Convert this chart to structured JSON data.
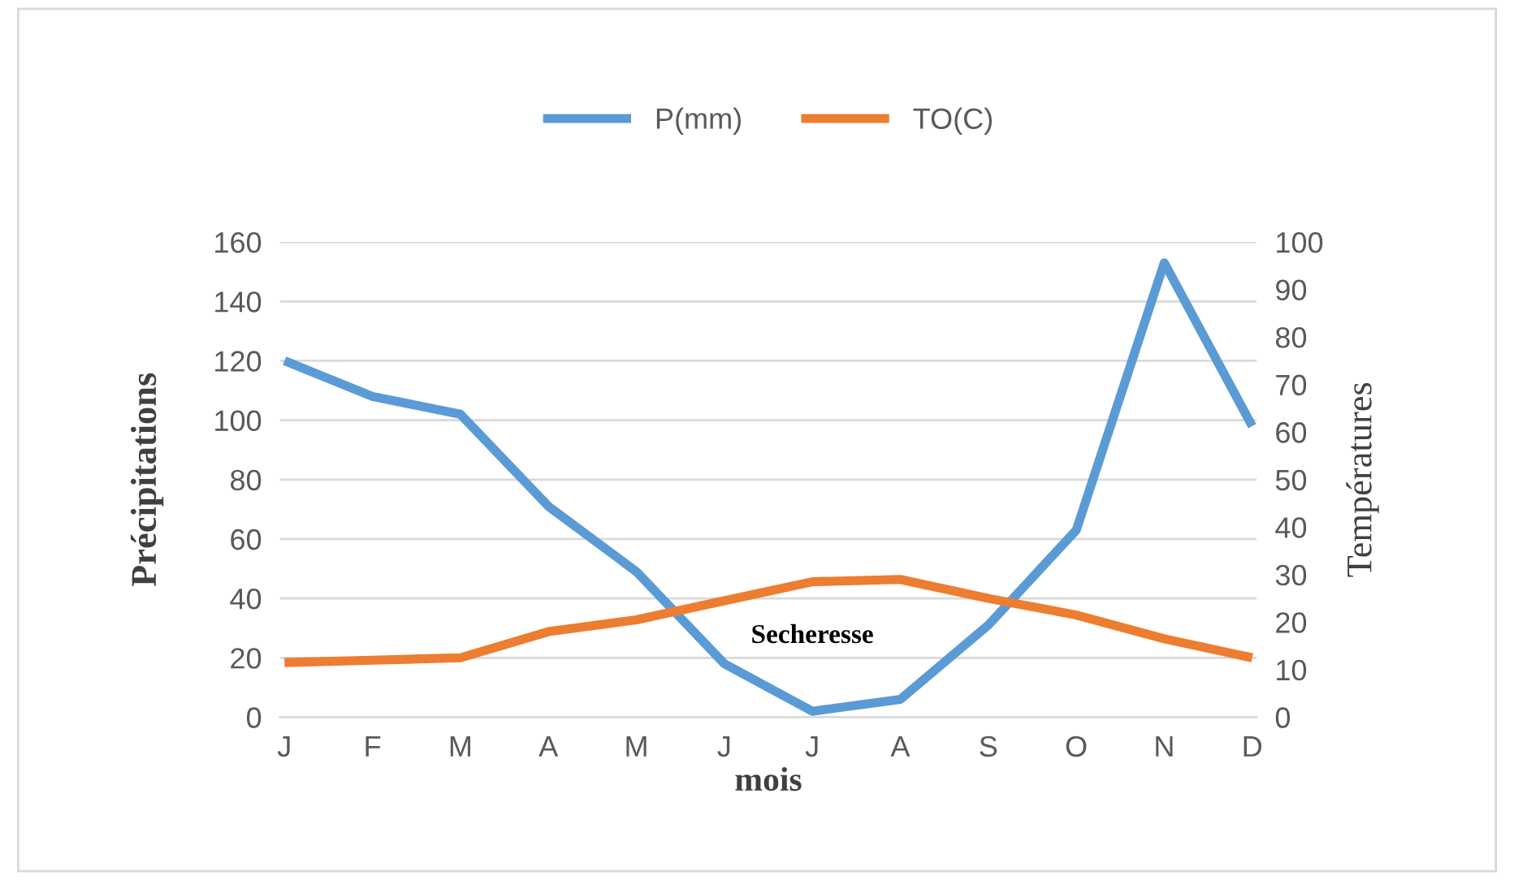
{
  "chart_data": {
    "type": "line",
    "xlabel": "mois",
    "ylabel": "Précipitations",
    "y2label": "Températures",
    "categories": [
      "J",
      "F",
      "M",
      "A",
      "M",
      "J",
      "J",
      "A",
      "S",
      "O",
      "N",
      "D"
    ],
    "series": [
      {
        "name": "P(mm)",
        "color": "#5b9bd5",
        "values": [
          120,
          108,
          102,
          71,
          49,
          18,
          2,
          6,
          31,
          63,
          153,
          98
        ]
      },
      {
        "name": "TO(C)",
        "color": "#ed7d31",
        "axis": "y2",
        "values": [
          11.5,
          12,
          12.5,
          18,
          20.5,
          24.5,
          28.5,
          29,
          25,
          21.5,
          16.5,
          12.5
        ]
      }
    ],
    "ylim": [
      0,
      160
    ],
    "yticks": [
      0,
      20,
      40,
      60,
      80,
      100,
      120,
      140,
      160
    ],
    "y2lim": [
      0,
      100
    ],
    "y2ticks": [
      0,
      10,
      20,
      30,
      40,
      50,
      60,
      70,
      80,
      90,
      100
    ],
    "annotations": [
      "Secheresse"
    ],
    "grid": "y",
    "legend": "top",
    "marker": "none",
    "line_style": "solid"
  }
}
